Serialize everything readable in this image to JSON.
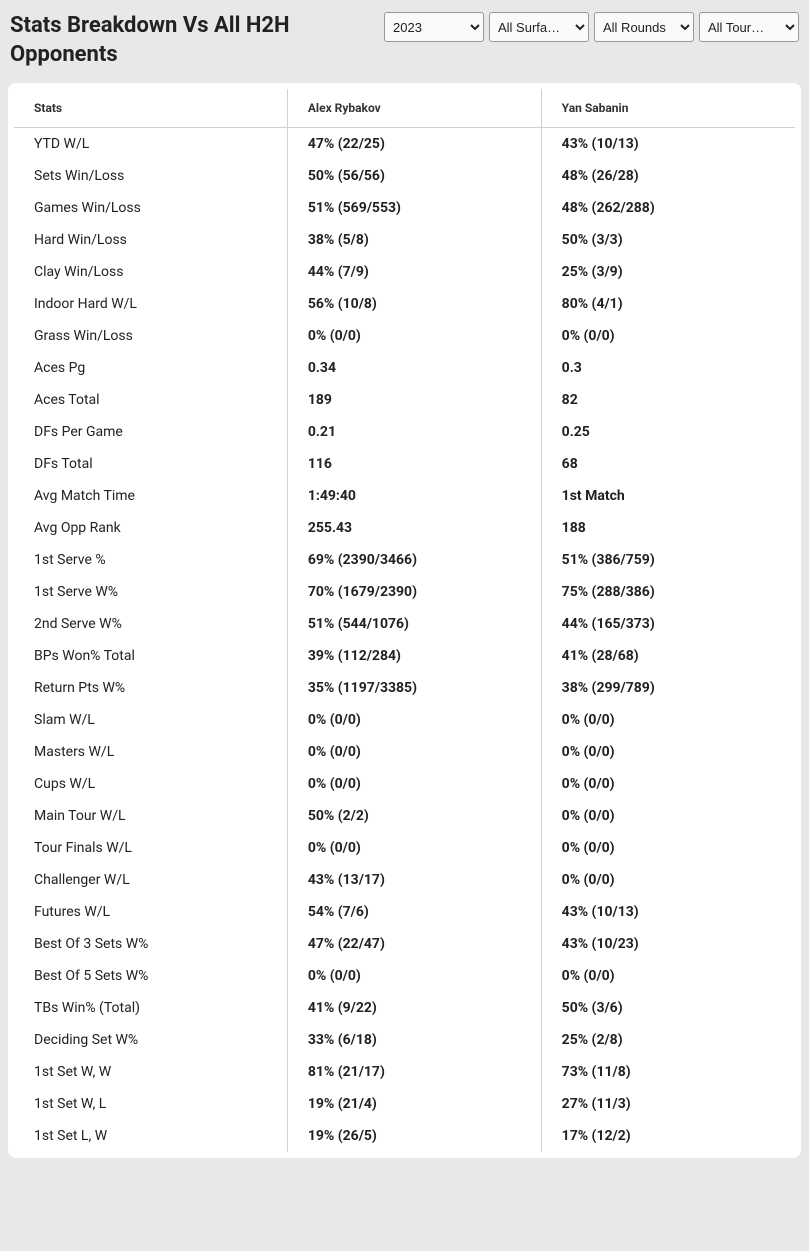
{
  "title": "Stats Breakdown Vs All H2H Opponents",
  "filters": {
    "year": {
      "selected": "2023",
      "options": [
        "2023"
      ]
    },
    "surface": {
      "selected": "All Surfa…",
      "options": [
        "All Surfa…"
      ]
    },
    "round": {
      "selected": "All Rounds",
      "options": [
        "All Rounds"
      ]
    },
    "tournament": {
      "selected": "All Tour…",
      "options": [
        "All Tour…"
      ]
    }
  },
  "columns": {
    "stats": "Stats",
    "player1": "Alex Rybakov",
    "player2": "Yan Sabanin"
  },
  "rows": [
    {
      "stat": "YTD W/L",
      "p1": "47% (22/25)",
      "p2": "43% (10/13)"
    },
    {
      "stat": "Sets Win/Loss",
      "p1": "50% (56/56)",
      "p2": "48% (26/28)"
    },
    {
      "stat": "Games Win/Loss",
      "p1": "51% (569/553)",
      "p2": "48% (262/288)"
    },
    {
      "stat": "Hard Win/Loss",
      "p1": "38% (5/8)",
      "p2": "50% (3/3)"
    },
    {
      "stat": "Clay Win/Loss",
      "p1": "44% (7/9)",
      "p2": "25% (3/9)"
    },
    {
      "stat": "Indoor Hard W/L",
      "p1": "56% (10/8)",
      "p2": "80% (4/1)"
    },
    {
      "stat": "Grass Win/Loss",
      "p1": "0% (0/0)",
      "p2": "0% (0/0)"
    },
    {
      "stat": "Aces Pg",
      "p1": "0.34",
      "p2": "0.3"
    },
    {
      "stat": "Aces Total",
      "p1": "189",
      "p2": "82"
    },
    {
      "stat": "DFs Per Game",
      "p1": "0.21",
      "p2": "0.25"
    },
    {
      "stat": "DFs Total",
      "p1": "116",
      "p2": "68"
    },
    {
      "stat": "Avg Match Time",
      "p1": "1:49:40",
      "p2": "1st Match"
    },
    {
      "stat": "Avg Opp Rank",
      "p1": "255.43",
      "p2": "188"
    },
    {
      "stat": "1st Serve %",
      "p1": "69% (2390/3466)",
      "p2": "51% (386/759)"
    },
    {
      "stat": "1st Serve W%",
      "p1": "70% (1679/2390)",
      "p2": "75% (288/386)"
    },
    {
      "stat": "2nd Serve W%",
      "p1": "51% (544/1076)",
      "p2": "44% (165/373)"
    },
    {
      "stat": "BPs Won% Total",
      "p1": "39% (112/284)",
      "p2": "41% (28/68)"
    },
    {
      "stat": "Return Pts W%",
      "p1": "35% (1197/3385)",
      "p2": "38% (299/789)"
    },
    {
      "stat": "Slam W/L",
      "p1": "0% (0/0)",
      "p2": "0% (0/0)"
    },
    {
      "stat": "Masters W/L",
      "p1": "0% (0/0)",
      "p2": "0% (0/0)"
    },
    {
      "stat": "Cups W/L",
      "p1": "0% (0/0)",
      "p2": "0% (0/0)"
    },
    {
      "stat": "Main Tour W/L",
      "p1": "50% (2/2)",
      "p2": "0% (0/0)"
    },
    {
      "stat": "Tour Finals W/L",
      "p1": "0% (0/0)",
      "p2": "0% (0/0)"
    },
    {
      "stat": "Challenger W/L",
      "p1": "43% (13/17)",
      "p2": "0% (0/0)"
    },
    {
      "stat": "Futures W/L",
      "p1": "54% (7/6)",
      "p2": "43% (10/13)"
    },
    {
      "stat": "Best Of 3 Sets W%",
      "p1": "47% (22/47)",
      "p2": "43% (10/23)"
    },
    {
      "stat": "Best Of 5 Sets W%",
      "p1": "0% (0/0)",
      "p2": "0% (0/0)"
    },
    {
      "stat": "TBs Win% (Total)",
      "p1": "41% (9/22)",
      "p2": "50% (3/6)"
    },
    {
      "stat": "Deciding Set W%",
      "p1": "33% (6/18)",
      "p2": "25% (2/8)"
    },
    {
      "stat": "1st Set W, W",
      "p1": "81% (21/17)",
      "p2": "73% (11/8)"
    },
    {
      "stat": "1st Set W, L",
      "p1": "19% (21/4)",
      "p2": "27% (11/3)"
    },
    {
      "stat": "1st Set L, W",
      "p1": "19% (26/5)",
      "p2": "17% (12/2)"
    }
  ]
}
